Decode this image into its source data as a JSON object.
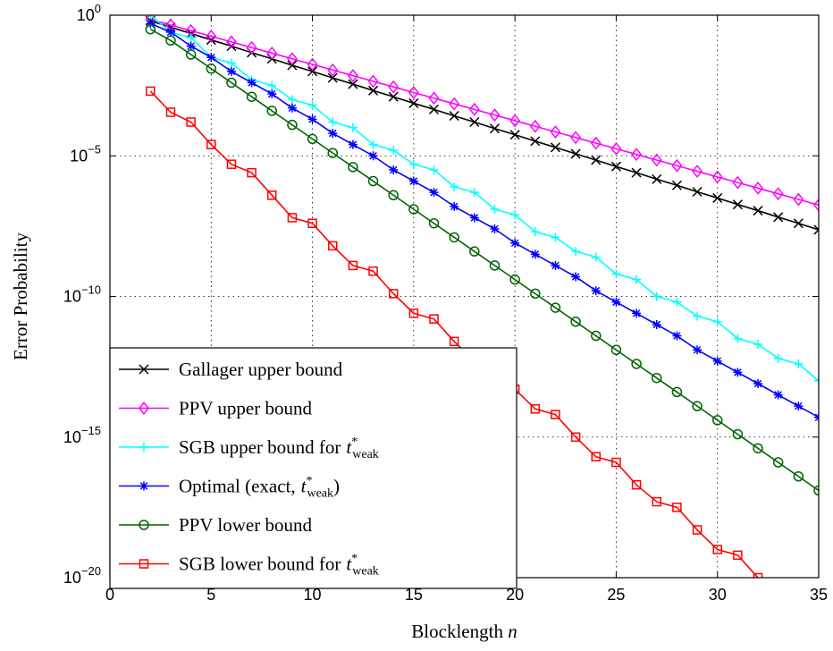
{
  "chart_data": {
    "type": "line",
    "xlabel": "Blocklength",
    "xlabel_var": "n",
    "ylabel": "Error Probability",
    "xlim": [
      0,
      35
    ],
    "ylim_log10": [
      -20,
      0
    ],
    "yscale": "log",
    "x_ticks": [
      0,
      5,
      10,
      15,
      20,
      25,
      30,
      35
    ],
    "x_tick_labels": [
      "0",
      "5",
      "10",
      "15",
      "20",
      "25",
      "30",
      "35"
    ],
    "y_ticks": [
      {
        "base": "10",
        "exp": "0",
        "value": 0
      },
      {
        "base": "10",
        "exp": "−5",
        "value": -5
      },
      {
        "base": "10",
        "exp": "−10",
        "value": -10
      },
      {
        "base": "10",
        "exp": "−15",
        "value": -15
      },
      {
        "base": "10",
        "exp": "−20",
        "value": -20
      }
    ],
    "grid": true,
    "legend_position": "bottom-left",
    "x": [
      2,
      3,
      4,
      5,
      6,
      7,
      8,
      9,
      10,
      11,
      12,
      13,
      14,
      15,
      16,
      17,
      18,
      19,
      20,
      21,
      22,
      23,
      24,
      25,
      26,
      27,
      28,
      29,
      30,
      31,
      32,
      33,
      34,
      35
    ],
    "series": [
      {
        "name": "Gallager upper bound",
        "label_main": "Gallager upper bound",
        "color": "#000000",
        "marker": "x",
        "log10_values": [
          -0.2,
          -0.43,
          -0.65,
          -0.88,
          -1.1,
          -1.33,
          -1.55,
          -1.78,
          -2.0,
          -2.23,
          -2.45,
          -2.68,
          -2.9,
          -3.13,
          -3.35,
          -3.58,
          -3.8,
          -4.03,
          -4.25,
          -4.48,
          -4.7,
          -4.93,
          -5.15,
          -5.38,
          -5.6,
          -5.83,
          -6.05,
          -6.28,
          -6.5,
          -6.73,
          -6.95,
          -7.18,
          -7.4,
          -7.63
        ]
      },
      {
        "name": "PPV upper bound",
        "label_main": "PPV upper bound",
        "color": "#ff00ff",
        "marker": "diamond",
        "log10_values": [
          -0.15,
          -0.35,
          -0.55,
          -0.75,
          -0.95,
          -1.15,
          -1.35,
          -1.55,
          -1.75,
          -1.95,
          -2.15,
          -2.35,
          -2.55,
          -2.75,
          -2.95,
          -3.15,
          -3.35,
          -3.55,
          -3.75,
          -3.95,
          -4.15,
          -4.35,
          -4.55,
          -4.75,
          -4.95,
          -5.15,
          -5.35,
          -5.55,
          -5.75,
          -5.95,
          -6.15,
          -6.35,
          -6.55,
          -6.75
        ]
      },
      {
        "name": "SGB upper bound for t*weak",
        "label_main": "SGB upper bound for",
        "label_var": "t",
        "label_sup": "*",
        "label_sub": "weak",
        "color": "#00ffff",
        "marker": "plus",
        "log10_values": [
          0.0,
          -0.6,
          -0.8,
          -1.5,
          -1.7,
          -2.3,
          -2.5,
          -3.0,
          -3.2,
          -3.8,
          -4.0,
          -4.6,
          -4.8,
          -5.3,
          -5.5,
          -6.1,
          -6.3,
          -6.9,
          -7.1,
          -7.7,
          -7.9,
          -8.4,
          -8.6,
          -9.2,
          -9.4,
          -10.0,
          -10.2,
          -10.7,
          -10.9,
          -11.5,
          -11.7,
          -12.2,
          -12.4,
          -13.0
        ]
      },
      {
        "name": "Optimal (exact, t*weak)",
        "label_main": "Optimal (exact,",
        "label_var": "t",
        "label_sup": "*",
        "label_sub": "weak",
        "label_tail": ")",
        "color": "#0000ff",
        "marker": "asterisk",
        "log10_values": [
          -0.3,
          -0.6,
          -1.1,
          -1.5,
          -2.0,
          -2.4,
          -2.8,
          -3.3,
          -3.7,
          -4.2,
          -4.6,
          -5.0,
          -5.5,
          -5.9,
          -6.3,
          -6.8,
          -7.2,
          -7.6,
          -8.1,
          -8.5,
          -8.9,
          -9.3,
          -9.8,
          -10.2,
          -10.6,
          -11.0,
          -11.4,
          -11.9,
          -12.3,
          -12.7,
          -13.1,
          -13.5,
          -13.9,
          -14.3
        ]
      },
      {
        "name": "PPV lower bound",
        "label_main": "PPV lower bound",
        "color": "#006400",
        "marker": "circle",
        "log10_values": [
          -0.5,
          -0.9,
          -1.4,
          -1.9,
          -2.4,
          -2.9,
          -3.4,
          -3.9,
          -4.4,
          -4.9,
          -5.4,
          -5.9,
          -6.4,
          -6.9,
          -7.4,
          -7.9,
          -8.4,
          -8.9,
          -9.4,
          -9.9,
          -10.4,
          -10.9,
          -11.4,
          -11.9,
          -12.4,
          -12.9,
          -13.4,
          -13.9,
          -14.4,
          -14.9,
          -15.4,
          -15.9,
          -16.4,
          -16.9
        ]
      },
      {
        "name": "SGB lower bound for t*weak",
        "label_main": "SGB lower bound for",
        "label_var": "t",
        "label_sup": "*",
        "label_sub": "weak",
        "color": "#ff0000",
        "marker": "square",
        "log10_values": [
          -2.7,
          -3.45,
          -3.8,
          -4.6,
          -5.3,
          -5.6,
          -6.4,
          -7.2,
          -7.4,
          -8.2,
          -8.9,
          -9.1,
          -9.9,
          -10.6,
          -10.8,
          -11.6,
          -12.3,
          -12.5,
          -13.3,
          -14.0,
          -14.2,
          -15.0,
          -15.7,
          -15.9,
          -16.7,
          -17.3,
          -17.5,
          -18.3,
          -19.0,
          -19.2,
          -20.0,
          -20.6,
          -20.8,
          -21.6
        ]
      }
    ]
  }
}
